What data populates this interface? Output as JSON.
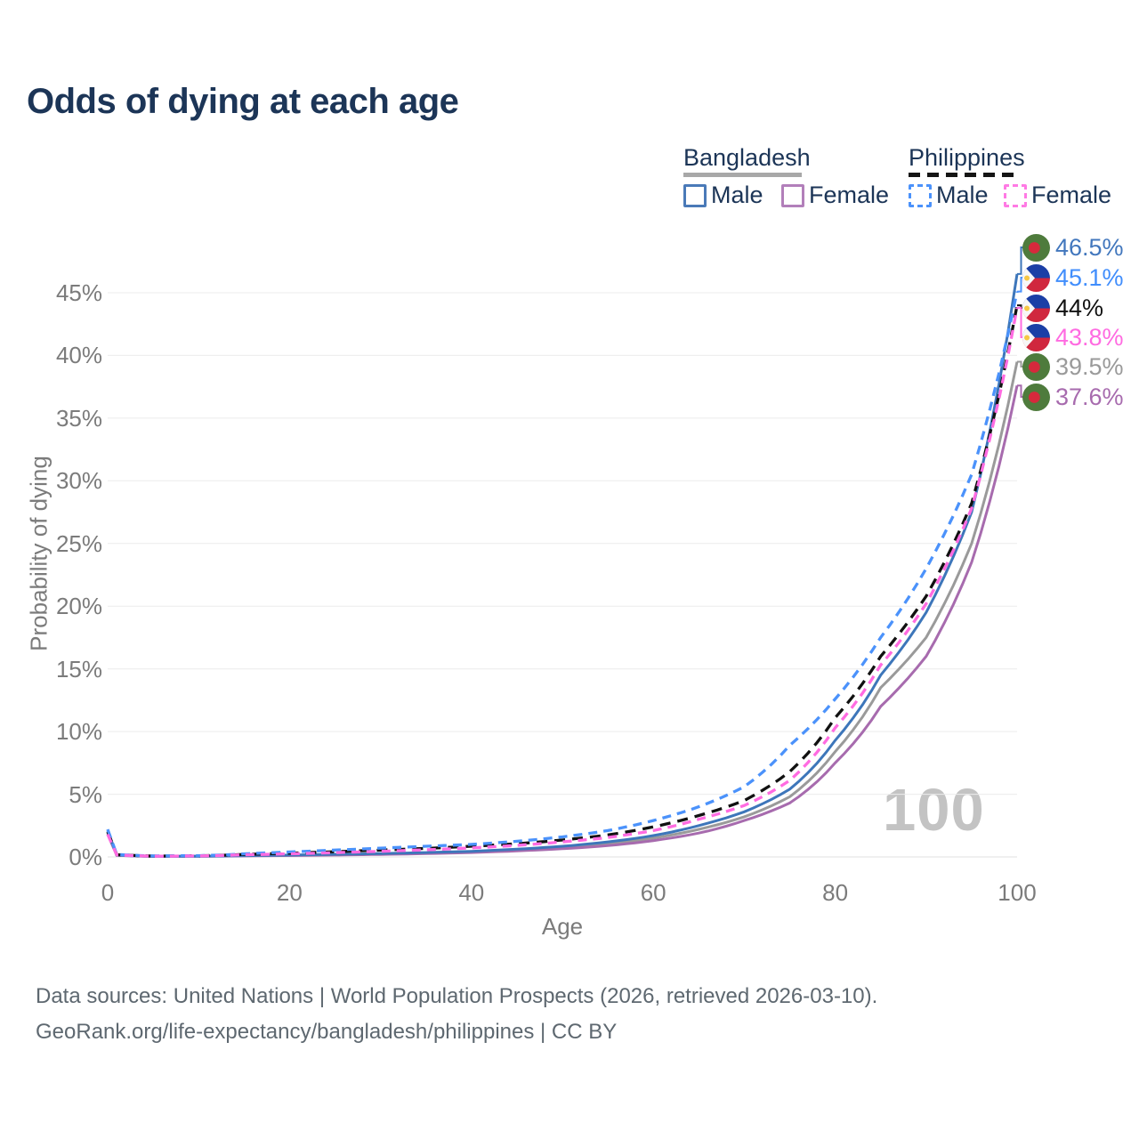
{
  "title": "Odds of dying at each age",
  "legend": {
    "groups": [
      {
        "label": "Bangladesh",
        "line_style": "solid",
        "line_color": "#a8a8a8",
        "items": [
          {
            "label": "Male",
            "color": "#4a7ab8",
            "dashed": false
          },
          {
            "label": "Female",
            "color": "#b27fba",
            "dashed": false
          }
        ]
      },
      {
        "label": "Philippines",
        "line_style": "dashed",
        "line_color": "#151515",
        "items": [
          {
            "label": "Male",
            "color": "#4b92fb",
            "dashed": true
          },
          {
            "label": "Female",
            "color": "#ff7ae4",
            "dashed": true
          }
        ]
      }
    ]
  },
  "axes": {
    "xlabel": "Age",
    "ylabel": "Probability of dying",
    "xticks": [
      0,
      20,
      40,
      60,
      80,
      100
    ],
    "yticks": [
      "0%",
      "5%",
      "10%",
      "15%",
      "20%",
      "25%",
      "30%",
      "35%",
      "40%",
      "45%"
    ]
  },
  "watermark": "100",
  "footer": {
    "line1": "Data sources: United Nations | World Population Prospects (2026, retrieved 2026-03-10).",
    "line2": "GeoRank.org/life-expectancy/bangladesh/philippines | CC BY"
  },
  "flags": {
    "bangladesh": {
      "field": "#4e7b3c",
      "disc": "#d6293c"
    },
    "philippines": {
      "blue": "#1b3fa6",
      "red": "#d0273e",
      "white": "#f7f7f7",
      "sun": "#f6c743"
    }
  },
  "chart_data": {
    "type": "line",
    "title": "Odds of dying at each age",
    "xlabel": "Age",
    "ylabel": "Probability of dying",
    "xlim": [
      0,
      100
    ],
    "ylim_percent": [
      0,
      49
    ],
    "grid": true,
    "legend_position": "top-right",
    "x": [
      0,
      1,
      5,
      10,
      15,
      20,
      25,
      30,
      35,
      40,
      45,
      50,
      55,
      60,
      65,
      70,
      75,
      80,
      85,
      90,
      95,
      100
    ],
    "series": [
      {
        "name": "Bangladesh Both sexes",
        "country": "Bangladesh",
        "sex": "Both",
        "color": "#9a9a9a",
        "dash": null,
        "flag": "bangladesh",
        "end_label": "39.5%",
        "end_label_color": "#9a9a9a",
        "values_percent": [
          1.95,
          0.14,
          0.045,
          0.055,
          0.09,
          0.13,
          0.18,
          0.23,
          0.3,
          0.4,
          0.54,
          0.75,
          1.05,
          1.5,
          2.2,
          3.2,
          4.8,
          8.4,
          13.5,
          17.5,
          25.0,
          39.5
        ]
      },
      {
        "name": "Bangladesh Female",
        "country": "Bangladesh",
        "sex": "Female",
        "color": "#a76bae",
        "dash": null,
        "flag": "bangladesh",
        "end_label": "37.6%",
        "end_label_color": "#a76bae",
        "values_percent": [
          1.8,
          0.13,
          0.04,
          0.05,
          0.08,
          0.11,
          0.15,
          0.2,
          0.26,
          0.35,
          0.48,
          0.65,
          0.9,
          1.3,
          1.9,
          2.9,
          4.3,
          7.5,
          12.0,
          16.0,
          23.5,
          37.6
        ]
      },
      {
        "name": "Bangladesh Male",
        "country": "Bangladesh",
        "sex": "Male",
        "color": "#3d76ba",
        "dash": null,
        "flag": "bangladesh",
        "end_label": "46.5%",
        "end_label_color": "#4277bd",
        "values_percent": [
          2.1,
          0.15,
          0.05,
          0.06,
          0.1,
          0.15,
          0.21,
          0.27,
          0.35,
          0.45,
          0.62,
          0.85,
          1.2,
          1.7,
          2.5,
          3.6,
          5.4,
          9.3,
          14.5,
          19.5,
          27.5,
          46.5
        ]
      },
      {
        "name": "Philippines Both sexes",
        "country": "Philippines",
        "sex": "Both",
        "color": "#111111",
        "dash": "12 8",
        "flag": "philippines",
        "end_label": "44%",
        "end_label_color": "#111111",
        "values_percent": [
          2.0,
          0.18,
          0.07,
          0.09,
          0.2,
          0.3,
          0.42,
          0.55,
          0.68,
          0.85,
          1.05,
          1.35,
          1.75,
          2.4,
          3.3,
          4.5,
          6.8,
          11.1,
          16.0,
          20.8,
          28.2,
          44.0
        ]
      },
      {
        "name": "Philippines Male",
        "country": "Philippines",
        "sex": "Male",
        "color": "#4b92fb",
        "dash": "10 7",
        "flag": "philippines",
        "end_label": "45.1%",
        "end_label_color": "#418efc",
        "values_percent": [
          2.2,
          0.2,
          0.08,
          0.1,
          0.25,
          0.4,
          0.55,
          0.7,
          0.85,
          1.0,
          1.25,
          1.6,
          2.1,
          2.9,
          4.0,
          5.6,
          8.9,
          12.6,
          17.5,
          23.0,
          30.5,
          45.1
        ]
      },
      {
        "name": "Philippines Female",
        "country": "Philippines",
        "sex": "Female",
        "color": "#ff6be1",
        "dash": "10 7",
        "flag": "philippines",
        "end_label": "43.8%",
        "end_label_color": "#ff6be1",
        "values_percent": [
          1.8,
          0.16,
          0.06,
          0.08,
          0.17,
          0.25,
          0.34,
          0.45,
          0.57,
          0.72,
          0.92,
          1.2,
          1.55,
          2.1,
          3.0,
          4.1,
          6.1,
          10.3,
          15.3,
          20.2,
          27.8,
          43.8
        ]
      }
    ]
  }
}
